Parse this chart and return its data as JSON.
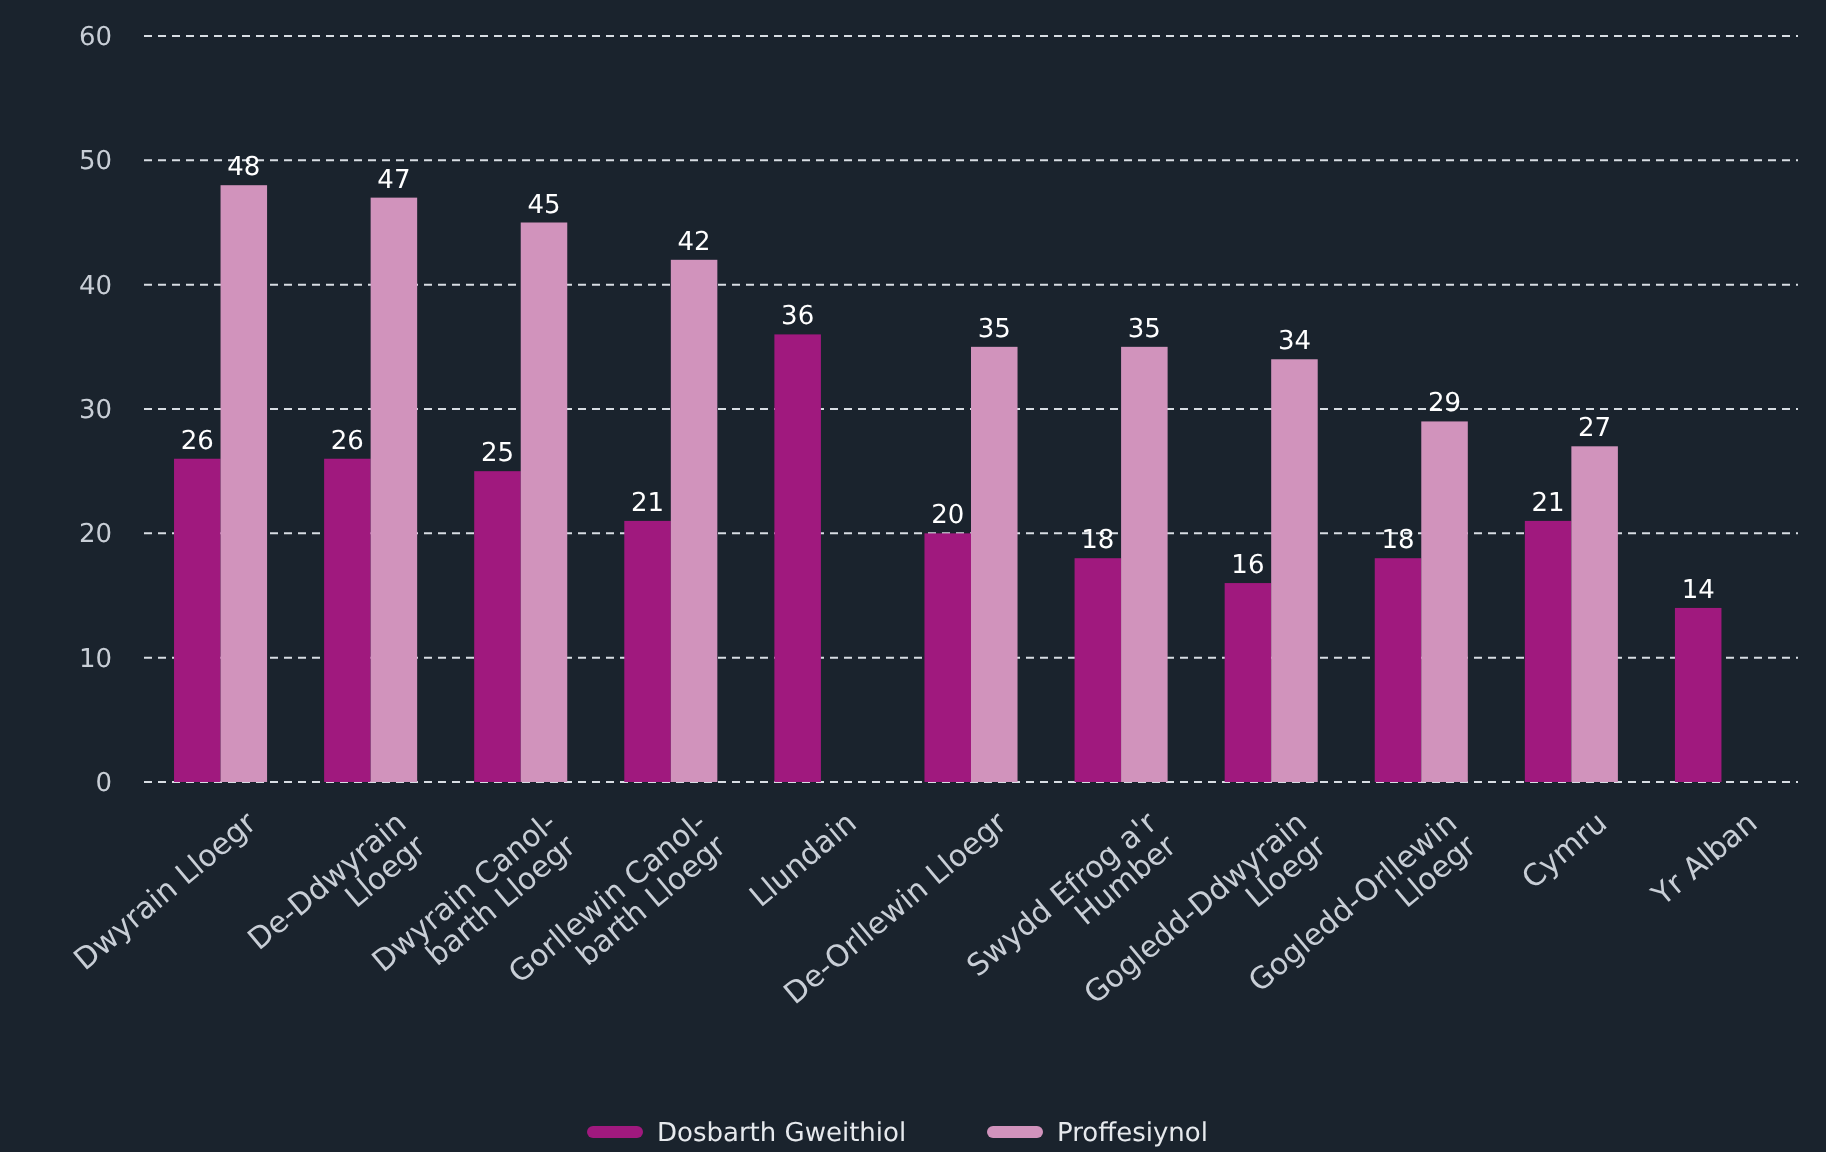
{
  "chart_data": {
    "type": "bar",
    "categories": [
      "Dwyrain Lloegr",
      "De-Ddwyrain\nLloegr",
      "Dwyrain Canol-\nbarth Lloegr",
      "Gorllewin Canol-\nbarth Lloegr",
      "Llundain",
      "De-Orllewin Lloegr",
      "Swydd Efrog a'r\nHumber",
      "Gogledd-Ddwyrain\nLloegr",
      "Gogledd-Orllewin\nLloegr",
      "Cymru",
      "Yr Alban"
    ],
    "series": [
      {
        "name": "Dosbarth Gweithiol",
        "color": "#a0197e",
        "values": [
          26,
          26,
          25,
          21,
          36,
          20,
          18,
          16,
          18,
          21,
          14
        ]
      },
      {
        "name": "Proffesiynol",
        "color": "#d193bc",
        "values": [
          48,
          47,
          45,
          42,
          null,
          35,
          35,
          34,
          29,
          27,
          null
        ]
      }
    ],
    "ylim": [
      0,
      60
    ],
    "yticks": [
      0,
      10,
      20,
      30,
      40,
      50,
      60
    ],
    "grid": "y",
    "data_labels": true,
    "legend": "bottom"
  }
}
